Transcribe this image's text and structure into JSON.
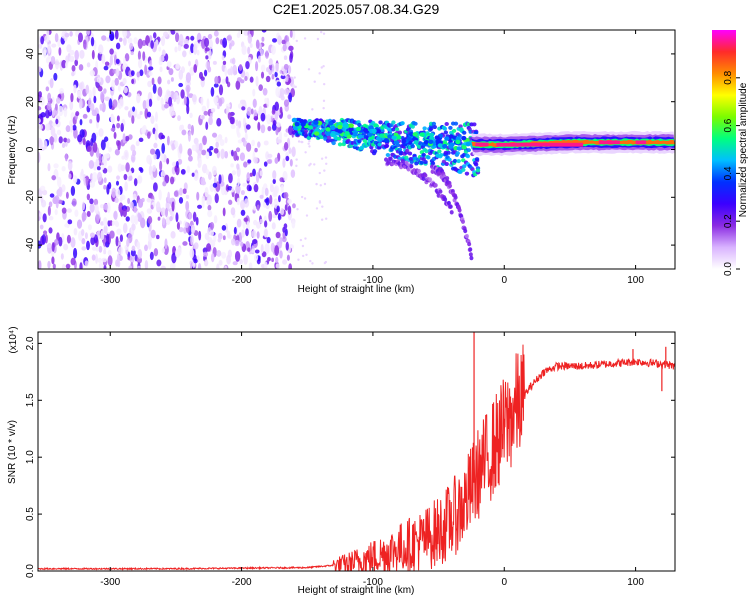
{
  "title": "C2E1.2025.057.08.34.G29",
  "chart_data": [
    {
      "type": "heatmap",
      "panel": "spectrogram",
      "xlabel": "Height of straight line (km)",
      "ylabel": "Frequency (Hz)",
      "xlim": [
        -355,
        130
      ],
      "ylim": [
        -50,
        50
      ],
      "xticks": [
        -300,
        -200,
        -100,
        0,
        100
      ],
      "yticks": [
        -40,
        -20,
        0,
        20,
        40
      ],
      "grid": false,
      "colorbar": {
        "label": "Normalized spectral amplitude",
        "range": [
          0.0,
          1.0
        ],
        "ticks": [
          0.0,
          0.2,
          0.4,
          0.6,
          0.8
        ],
        "colormap": [
          "#ffffff",
          "#d9b3ff",
          "#8a2be2",
          "#3b00ff",
          "#0030ff",
          "#00bfff",
          "#00ff7f",
          "#7cfc00",
          "#ffff00",
          "#ff8c00",
          "#ff2a2a",
          "#ff00ff"
        ]
      },
      "features": {
        "noise_region": {
          "x_range": [
            -355,
            -160
          ],
          "f_range": [
            -50,
            50
          ],
          "amplitude": [
            0.02,
            0.3
          ]
        },
        "signal_ridge": [
          {
            "x": -160,
            "f": 10
          },
          {
            "x": -120,
            "f": 8
          },
          {
            "x": -80,
            "f": 5
          },
          {
            "x": -40,
            "f": 3
          },
          {
            "x": -20,
            "f": 2
          },
          {
            "x": 0,
            "f": 2
          },
          {
            "x": 50,
            "f": 3
          },
          {
            "x": 100,
            "f": 3
          },
          {
            "x": 130,
            "f": 3
          }
        ],
        "tails": [
          {
            "start_x": -90,
            "start_f": -5,
            "end_x": -40,
            "end_f": -25
          },
          {
            "start_x": -55,
            "start_f": -8,
            "end_x": -25,
            "end_f": -45
          }
        ]
      }
    },
    {
      "type": "line",
      "panel": "snr",
      "xlabel": "Height of straight line (km)",
      "ylabel": "SNR (10 * v/v)",
      "y_multiplier": "(x10⁴)",
      "xlim": [
        -355,
        130
      ],
      "ylim": [
        0.0,
        2.1
      ],
      "xticks": [
        -300,
        -200,
        -100,
        0,
        100
      ],
      "yticks": [
        0.0,
        0.5,
        1.0,
        1.5,
        2.0
      ],
      "grid": false,
      "series": [
        {
          "color": "#ee2222",
          "x": [
            -355,
            -300,
            -250,
            -200,
            -150,
            -120,
            -100,
            -80,
            -60,
            -50,
            -40,
            -30,
            -20,
            -10,
            0,
            10,
            20,
            30,
            40,
            60,
            80,
            100,
            110,
            120,
            130
          ],
          "y": [
            0.02,
            0.02,
            0.02,
            0.025,
            0.03,
            0.06,
            0.12,
            0.2,
            0.28,
            0.35,
            0.45,
            0.6,
            0.85,
            1.05,
            1.25,
            1.45,
            1.62,
            1.75,
            1.8,
            1.8,
            1.82,
            1.84,
            1.83,
            1.82,
            1.8
          ]
        }
      ],
      "spikes": [
        {
          "x": -23,
          "y": 2.12
        },
        {
          "x": 98,
          "y": 1.95
        },
        {
          "x": 123,
          "y": 1.97
        },
        {
          "x": 120,
          "y": 1.58
        }
      ]
    }
  ]
}
